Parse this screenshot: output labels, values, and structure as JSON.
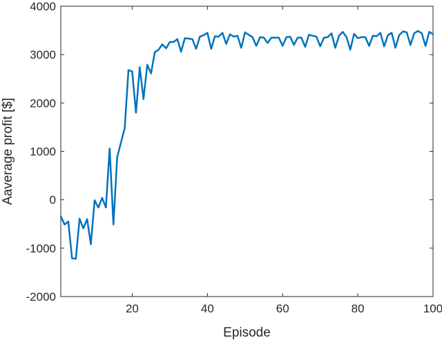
{
  "chart_data": {
    "type": "line",
    "title": "",
    "xlabel": "Episode",
    "ylabel": "Aaverage profit [$]",
    "xlim": [
      1,
      100
    ],
    "ylim": [
      -2000,
      4000
    ],
    "xticks": [
      20,
      40,
      60,
      80,
      100
    ],
    "yticks": [
      -2000,
      -1000,
      0,
      1000,
      2000,
      3000,
      4000
    ],
    "grid": false,
    "series": [
      {
        "color": "#0072BD",
        "x": [
          1,
          2,
          3,
          4,
          5,
          6,
          7,
          8,
          9,
          10,
          11,
          12,
          13,
          14,
          15,
          16,
          17,
          18,
          19,
          20,
          21,
          22,
          23,
          24,
          25,
          26,
          27,
          28,
          29,
          30,
          31,
          32,
          33,
          34,
          35,
          36,
          37,
          38,
          39,
          40,
          41,
          42,
          43,
          44,
          45,
          46,
          47,
          48,
          49,
          50,
          51,
          52,
          53,
          54,
          55,
          56,
          57,
          58,
          59,
          60,
          61,
          62,
          63,
          64,
          65,
          66,
          67,
          68,
          69,
          70,
          71,
          72,
          73,
          74,
          75,
          76,
          77,
          78,
          79,
          80,
          81,
          82,
          83,
          84,
          85,
          86,
          87,
          88,
          89,
          90,
          91,
          92,
          93,
          94,
          95,
          96,
          97,
          98,
          99,
          100
        ],
        "values": [
          -340,
          -510,
          -450,
          -1210,
          -1220,
          -390,
          -590,
          -400,
          -920,
          -10,
          -160,
          40,
          -160,
          1060,
          -510,
          880,
          1180,
          1480,
          2680,
          2650,
          1800,
          2740,
          2080,
          2790,
          2610,
          3050,
          3100,
          3210,
          3130,
          3260,
          3260,
          3320,
          3060,
          3340,
          3330,
          3320,
          3120,
          3370,
          3400,
          3450,
          3120,
          3380,
          3370,
          3450,
          3220,
          3420,
          3370,
          3390,
          3140,
          3460,
          3410,
          3360,
          3180,
          3360,
          3350,
          3240,
          3350,
          3350,
          3350,
          3180,
          3360,
          3370,
          3200,
          3350,
          3350,
          3160,
          3410,
          3390,
          3370,
          3170,
          3350,
          3360,
          3440,
          3140,
          3390,
          3470,
          3360,
          3100,
          3430,
          3340,
          3360,
          3360,
          3180,
          3390,
          3380,
          3450,
          3170,
          3400,
          3450,
          3140,
          3400,
          3480,
          3460,
          3200,
          3440,
          3490,
          3440,
          3180,
          3470,
          3420
        ]
      }
    ]
  }
}
